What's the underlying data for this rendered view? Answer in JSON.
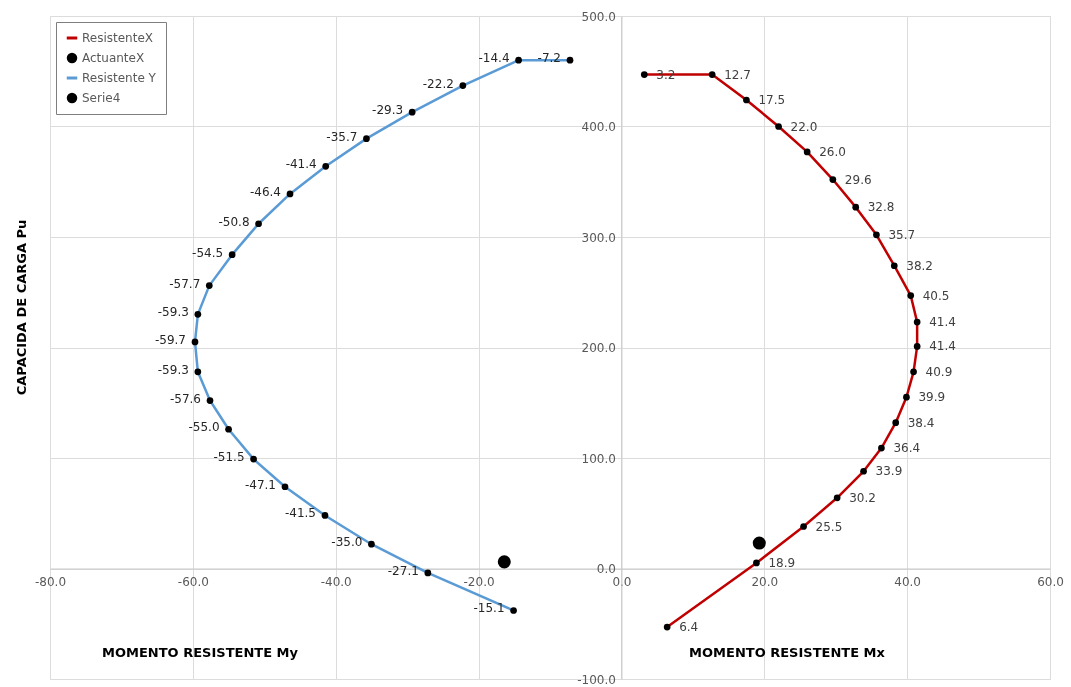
{
  "chart_data": {
    "type": "line",
    "ylabel": "CAPACIDA DE CARGA Pu",
    "annotations": [
      "MOMENTO RESISTENTE My",
      "MOMENTO RESISTENTE Mx",
      {
        "text": "3.2",
        "x": 3.2,
        "y": 447
      },
      {
        "text": "12.7",
        "x": 12.7,
        "y": 447
      },
      {
        "text": "17.5",
        "x": 17.5,
        "y": 424
      },
      {
        "text": "22.0",
        "x": 22.0,
        "y": 400
      },
      {
        "text": "26.0",
        "x": 26.0,
        "y": 377
      },
      {
        "text": "29.6",
        "x": 29.6,
        "y": 352
      },
      {
        "text": "32.8",
        "x": 32.8,
        "y": 327
      },
      {
        "text": "35.7",
        "x": 35.7,
        "y": 302
      },
      {
        "text": "38.2",
        "x": 38.2,
        "y": 274
      },
      {
        "text": "40.5",
        "x": 40.5,
        "y": 247
      },
      {
        "text": "41.4",
        "x": 41.4,
        "y": 223
      },
      {
        "text": "41.4",
        "x": 41.4,
        "y": 201
      },
      {
        "text": "40.9",
        "x": 40.9,
        "y": 178
      },
      {
        "text": "39.9",
        "x": 39.9,
        "y": 155
      },
      {
        "text": "38.4",
        "x": 38.4,
        "y": 132
      },
      {
        "text": "36.4",
        "x": 36.4,
        "y": 109
      },
      {
        "text": "33.9",
        "x": 33.9,
        "y": 88
      },
      {
        "text": "30.2",
        "x": 30.2,
        "y": 64
      },
      {
        "text": "25.5",
        "x": 25.5,
        "y": 38
      },
      {
        "text": "18.9",
        "x": 18.9,
        "y": 5
      },
      {
        "text": "6.4",
        "x": 6.4,
        "y": -53
      },
      {
        "text": "-7.2",
        "x": -7.2,
        "y": 460
      },
      {
        "text": "-14.4",
        "x": -14.4,
        "y": 460
      },
      {
        "text": "-22.2",
        "x": -22.2,
        "y": 437
      },
      {
        "text": "-29.3",
        "x": -29.3,
        "y": 413
      },
      {
        "text": "-35.7",
        "x": -35.7,
        "y": 389
      },
      {
        "text": "-41.4",
        "x": -41.4,
        "y": 364
      },
      {
        "text": "-46.4",
        "x": -46.4,
        "y": 339
      },
      {
        "text": "-50.8",
        "x": -50.8,
        "y": 312
      },
      {
        "text": "-54.5",
        "x": -54.5,
        "y": 284
      },
      {
        "text": "-57.7",
        "x": -57.7,
        "y": 256
      },
      {
        "text": "-59.3",
        "x": -59.3,
        "y": 230
      },
      {
        "text": "-59.7",
        "x": -59.7,
        "y": 205
      },
      {
        "text": "-59.3",
        "x": -59.3,
        "y": 178
      },
      {
        "text": "-57.6",
        "x": -57.6,
        "y": 152
      },
      {
        "text": "-55.0",
        "x": -55.0,
        "y": 126
      },
      {
        "text": "-51.5",
        "x": -51.5,
        "y": 99
      },
      {
        "text": "-47.1",
        "x": -47.1,
        "y": 74
      },
      {
        "text": "-41.5",
        "x": -41.5,
        "y": 48
      },
      {
        "text": "-35.0",
        "x": -35.0,
        "y": 22
      },
      {
        "text": "-27.1",
        "x": -27.1,
        "y": -4
      },
      {
        "text": "-15.1",
        "x": -15.1,
        "y": -38
      }
    ],
    "series": [
      {
        "name": "ResistenteX",
        "color": "#c00000",
        "x": [
          3.2,
          12.7,
          17.5,
          22.0,
          26.0,
          29.6,
          32.8,
          35.7,
          38.2,
          40.5,
          41.4,
          41.4,
          40.9,
          39.9,
          38.4,
          36.4,
          33.9,
          30.2,
          25.5,
          18.9,
          6.4
        ],
        "values": [
          447,
          447,
          424,
          400,
          377,
          352,
          327,
          302,
          274,
          247,
          223,
          201,
          178,
          155,
          132,
          109,
          88,
          64,
          38,
          5,
          -53
        ]
      },
      {
        "name": "ActuanteX",
        "type": "scatter",
        "color": "#000000",
        "x": [
          19.3
        ],
        "values": [
          23
        ]
      },
      {
        "name": "Resistente Y",
        "color": "#5b9bd5",
        "x": [
          -7.2,
          -14.4,
          -22.2,
          -29.3,
          -35.7,
          -41.4,
          -46.4,
          -50.8,
          -54.5,
          -57.7,
          -59.3,
          -59.7,
          -59.3,
          -57.6,
          -55.0,
          -51.5,
          -47.1,
          -41.5,
          -35.0,
          -27.1,
          -15.1
        ],
        "values": [
          460,
          460,
          437,
          413,
          389,
          364,
          339,
          312,
          284,
          256,
          230,
          205,
          178,
          152,
          126,
          99,
          74,
          48,
          22,
          -4,
          -38
        ]
      },
      {
        "name": "Serie4",
        "type": "scatter",
        "color": "#000000",
        "x": [
          -16.4
        ],
        "values": [
          6
        ]
      }
    ],
    "xlim": [
      -80,
      60
    ],
    "ylim": [
      -100,
      500
    ],
    "xticks": [
      {
        "value": -80,
        "label": "-80.0"
      },
      {
        "value": -60,
        "label": "-60.0"
      },
      {
        "value": -40,
        "label": "-40.0"
      },
      {
        "value": -20,
        "label": "-20.0"
      },
      {
        "value": 0,
        "label": "0.0"
      },
      {
        "value": 20,
        "label": "20.0"
      },
      {
        "value": 40,
        "label": "40.0"
      },
      {
        "value": 60,
        "label": "60.0"
      }
    ],
    "yticks": [
      {
        "value": -100,
        "label": "-100.0"
      },
      {
        "value": 0,
        "label": "0.0"
      },
      {
        "value": 100,
        "label": "100.0"
      },
      {
        "value": 200,
        "label": "200.0"
      },
      {
        "value": 300,
        "label": "300.0"
      },
      {
        "value": 400,
        "label": "400.0"
      },
      {
        "value": 500,
        "label": "500.0"
      }
    ],
    "grid": true,
    "legend": "top left",
    "marker": "circle",
    "line_style": "solid"
  }
}
